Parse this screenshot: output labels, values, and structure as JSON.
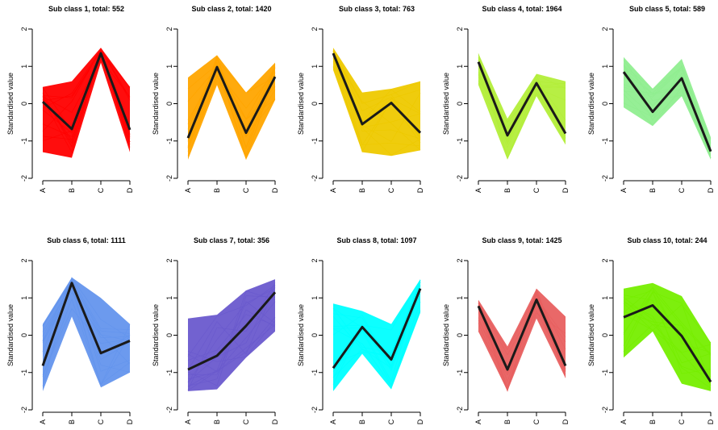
{
  "chart_data": [
    {
      "type": "line",
      "title": "Sub class 1, total: 552",
      "ylabel": "Standardised value",
      "categories": [
        "A",
        "B",
        "C",
        "D"
      ],
      "ylim": [
        -2,
        2
      ],
      "y_ticks": [
        -2,
        -1,
        0,
        1,
        2
      ],
      "color": "#ff0000",
      "mean": [
        0.05,
        -0.68,
        1.35,
        -0.7
      ],
      "band_upper": [
        0.45,
        0.6,
        1.5,
        0.45
      ],
      "band_lower": [
        -1.3,
        -1.45,
        1.1,
        -1.3
      ]
    },
    {
      "type": "line",
      "title": "Sub class 2, total: 1420",
      "ylabel": "Standardised value",
      "categories": [
        "A",
        "B",
        "C",
        "D"
      ],
      "ylim": [
        -2,
        2
      ],
      "y_ticks": [
        -2,
        -1,
        0,
        1,
        2
      ],
      "color": "#ffa500",
      "mean": [
        -0.92,
        0.98,
        -0.78,
        0.72
      ],
      "band_upper": [
        0.7,
        1.3,
        0.3,
        1.1
      ],
      "band_lower": [
        -1.5,
        0.5,
        -1.5,
        0.1
      ]
    },
    {
      "type": "line",
      "title": "Sub class 3, total: 763",
      "ylabel": "Standardised value",
      "categories": [
        "A",
        "B",
        "C",
        "D"
      ],
      "ylim": [
        -2,
        2
      ],
      "y_ticks": [
        -2,
        -1,
        0,
        1,
        2
      ],
      "color": "#eec900",
      "mean": [
        1.35,
        -0.55,
        0.02,
        -0.78
      ],
      "band_upper": [
        1.5,
        0.3,
        0.4,
        0.6
      ],
      "band_lower": [
        0.9,
        -1.3,
        -1.4,
        -1.25
      ]
    },
    {
      "type": "line",
      "title": "Sub class 4, total: 1964",
      "ylabel": "Standardised value",
      "categories": [
        "A",
        "B",
        "C",
        "D"
      ],
      "ylim": [
        -2,
        2
      ],
      "y_ticks": [
        -2,
        -1,
        0,
        1,
        2
      ],
      "color": "#b3ee3a",
      "mean": [
        1.12,
        -0.85,
        0.55,
        -0.8
      ],
      "band_upper": [
        1.35,
        -0.4,
        0.8,
        0.6
      ],
      "band_lower": [
        0.5,
        -1.5,
        0.2,
        -1.1
      ]
    },
    {
      "type": "line",
      "title": "Sub class 5, total: 589",
      "ylabel": "Standardised value",
      "categories": [
        "A",
        "B",
        "C",
        "D"
      ],
      "ylim": [
        -2,
        2
      ],
      "y_ticks": [
        -2,
        -1,
        0,
        1,
        2
      ],
      "color": "#90ee90",
      "mean": [
        0.85,
        -0.22,
        0.68,
        -1.28
      ],
      "band_upper": [
        1.25,
        0.4,
        1.2,
        -0.9
      ],
      "band_lower": [
        -0.1,
        -0.6,
        0.2,
        -1.5
      ]
    },
    {
      "type": "line",
      "title": "Sub class 6, total: 1111",
      "ylabel": "Standardised value",
      "categories": [
        "A",
        "B",
        "C",
        "D"
      ],
      "ylim": [
        -2,
        2
      ],
      "y_ticks": [
        -2,
        -1,
        0,
        1,
        2
      ],
      "color": "#6495ed",
      "mean": [
        -0.82,
        1.4,
        -0.48,
        -0.15
      ],
      "band_upper": [
        0.3,
        1.55,
        1.0,
        0.3
      ],
      "band_lower": [
        -1.5,
        0.5,
        -1.4,
        -1.0
      ]
    },
    {
      "type": "line",
      "title": "Sub class 7, total: 356",
      "ylabel": "Standardised value",
      "categories": [
        "A",
        "B",
        "C",
        "D"
      ],
      "ylim": [
        -2,
        2
      ],
      "y_ticks": [
        -2,
        -1,
        0,
        1,
        2
      ],
      "color": "#6a5acd",
      "mean": [
        -0.92,
        -0.55,
        0.25,
        1.15
      ],
      "band_upper": [
        0.45,
        0.55,
        1.2,
        1.5
      ],
      "band_lower": [
        -1.5,
        -1.45,
        -0.6,
        0.1
      ]
    },
    {
      "type": "line",
      "title": "Sub class 8, total: 1097",
      "ylabel": "Standardised value",
      "categories": [
        "A",
        "B",
        "C",
        "D"
      ],
      "ylim": [
        -2,
        2
      ],
      "y_ticks": [
        -2,
        -1,
        0,
        1,
        2
      ],
      "color": "#00ffff",
      "mean": [
        -0.88,
        0.22,
        -0.65,
        1.25
      ],
      "band_upper": [
        0.85,
        0.65,
        0.3,
        1.5
      ],
      "band_lower": [
        -1.5,
        -0.5,
        -1.45,
        0.6
      ]
    },
    {
      "type": "line",
      "title": "Sub class 9, total: 1425",
      "ylabel": "Standardised value",
      "categories": [
        "A",
        "B",
        "C",
        "D"
      ],
      "ylim": [
        -2,
        2
      ],
      "y_ticks": [
        -2,
        -1,
        0,
        1,
        2
      ],
      "color": "#e86060",
      "mean": [
        0.78,
        -0.92,
        0.95,
        -0.82
      ],
      "band_upper": [
        0.95,
        -0.3,
        1.25,
        0.5
      ],
      "band_lower": [
        0.1,
        -1.5,
        0.45,
        -1.15
      ]
    },
    {
      "type": "line",
      "title": "Sub class 10, total: 244",
      "ylabel": "Standardised value",
      "categories": [
        "A",
        "B",
        "C",
        "D"
      ],
      "ylim": [
        -2,
        2
      ],
      "y_ticks": [
        -2,
        -1,
        0,
        1,
        2
      ],
      "color": "#76ee00",
      "mean": [
        0.48,
        0.8,
        -0.02,
        -1.25
      ],
      "band_upper": [
        1.25,
        1.4,
        1.05,
        -0.2
      ],
      "band_lower": [
        -0.6,
        0.1,
        -1.3,
        -1.5
      ]
    }
  ]
}
